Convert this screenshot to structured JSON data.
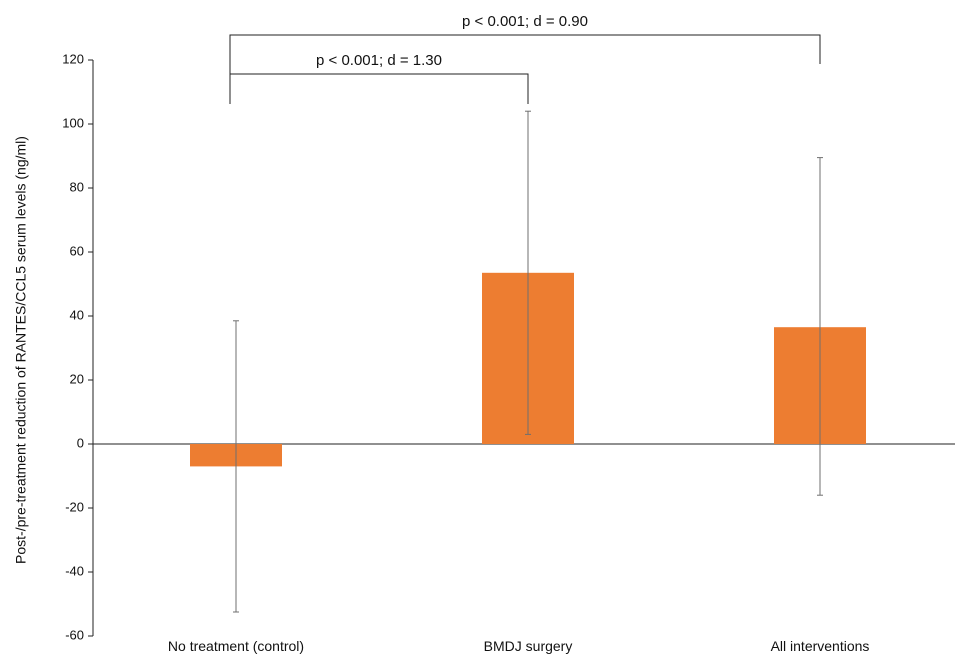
{
  "chart_data": {
    "type": "bar",
    "ylabel": "Post-/pre-treatment reduction of RANTES/CCL5 serum levels (ng/ml)",
    "ylim": [
      -60,
      120
    ],
    "yticks": [
      -60,
      -40,
      -20,
      0,
      20,
      40,
      60,
      80,
      100,
      120
    ],
    "grid": false,
    "categories": [
      "No treatment (control)",
      "BMDJ surgery",
      "All interventions"
    ],
    "values": [
      -7,
      53.5,
      36.5
    ],
    "error_low": [
      -52.5,
      3,
      -16
    ],
    "error_high": [
      38.5,
      104,
      89.5
    ],
    "bar_color": "#ED7D31",
    "annotations": [
      {
        "text": "p < 0.001; d = 1.30",
        "from_category": 0,
        "to_category": 1
      },
      {
        "text": "p < 0.001; d = 0.90",
        "from_category": 0,
        "to_category": 2
      }
    ]
  }
}
